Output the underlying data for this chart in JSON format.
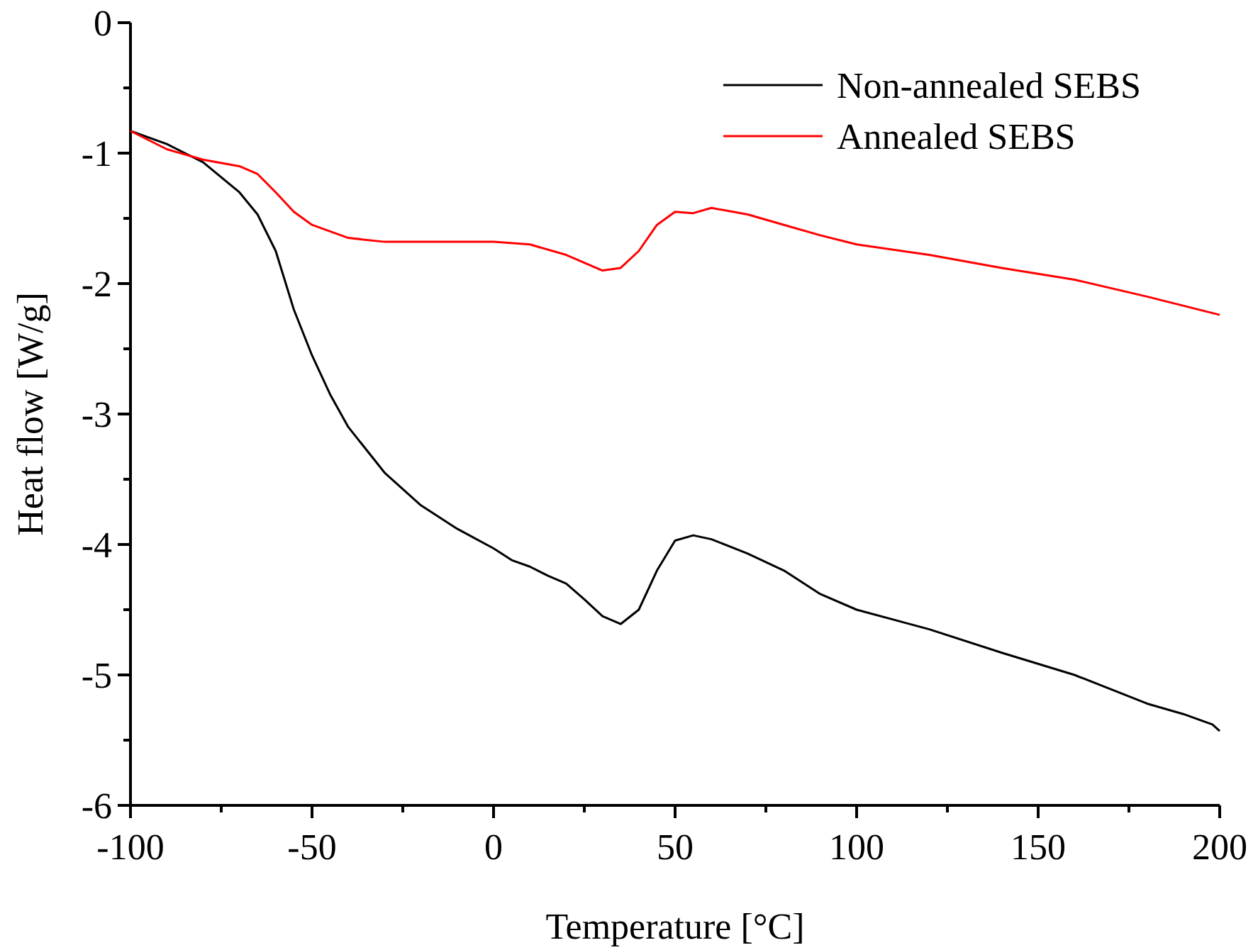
{
  "chart_data": {
    "type": "line",
    "xlabel": "Temperature [°C]",
    "ylabel": "Heat flow [W/g]",
    "xlim": [
      -100,
      200
    ],
    "ylim": [
      -6,
      0
    ],
    "xticks": [
      -100,
      {
        "value": -75,
        "label": null
      },
      -50,
      {
        "value": -25,
        "label": null
      },
      0,
      {
        "value": 25,
        "label": null
      },
      50,
      {
        "value": 75,
        "label": null
      },
      100,
      {
        "value": 125,
        "label": null
      },
      150,
      {
        "value": 175,
        "label": null
      },
      200
    ],
    "yticks": [
      -6,
      {
        "value": -5.5,
        "label": null
      },
      -5,
      {
        "value": -4.5,
        "label": null
      },
      -4,
      {
        "value": -3.5,
        "label": null
      },
      -3,
      {
        "value": -2.5,
        "label": null
      },
      -2,
      {
        "value": -1.5,
        "label": null
      },
      -1,
      {
        "value": -0.5,
        "label": null
      },
      0
    ],
    "legend": "top right",
    "grid": false,
    "marker": "none",
    "line_style": "solid",
    "series": [
      {
        "name": "Non-annealed SEBS",
        "color": "#000000",
        "x": [
          -100,
          -90,
          -80,
          -70,
          -65,
          -60,
          -55,
          -50,
          -45,
          -40,
          -30,
          -20,
          -10,
          0,
          5,
          10,
          15,
          20,
          25,
          30,
          35,
          40,
          45,
          50,
          55,
          60,
          70,
          80,
          90,
          100,
          120,
          140,
          160,
          180,
          190,
          198,
          200
        ],
        "values": [
          -0.83,
          -0.93,
          -1.07,
          -1.3,
          -1.47,
          -1.75,
          -2.2,
          -2.55,
          -2.85,
          -3.1,
          -3.45,
          -3.7,
          -3.88,
          -4.03,
          -4.12,
          -4.17,
          -4.24,
          -4.3,
          -4.42,
          -4.55,
          -4.61,
          -4.5,
          -4.2,
          -3.97,
          -3.93,
          -3.96,
          -4.07,
          -4.2,
          -4.38,
          -4.5,
          -4.65,
          -4.83,
          -5.0,
          -5.22,
          -5.3,
          -5.38,
          -5.43
        ]
      },
      {
        "name": "Annealed SEBS",
        "color": "#ff0000",
        "x": [
          -100,
          -90,
          -80,
          -70,
          -65,
          -60,
          -55,
          -50,
          -40,
          -30,
          0,
          10,
          20,
          30,
          35,
          40,
          45,
          50,
          55,
          60,
          70,
          80,
          90,
          100,
          120,
          140,
          160,
          180,
          200
        ],
        "values": [
          -0.83,
          -0.97,
          -1.05,
          -1.1,
          -1.16,
          -1.3,
          -1.45,
          -1.55,
          -1.65,
          -1.68,
          -1.68,
          -1.7,
          -1.78,
          -1.9,
          -1.88,
          -1.75,
          -1.55,
          -1.45,
          -1.46,
          -1.42,
          -1.47,
          -1.55,
          -1.63,
          -1.7,
          -1.78,
          -1.88,
          -1.97,
          -2.1,
          -2.24
        ]
      }
    ]
  }
}
